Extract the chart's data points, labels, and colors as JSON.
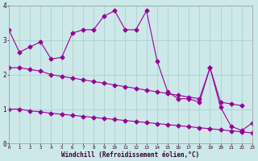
{
  "xlabel": "Windchill (Refroidissement éolien,°C)",
  "bg_color": "#cce8e8",
  "line_color": "#990099",
  "grid_color": "#aacccc",
  "tick_color": "#330033",
  "ylim": [
    0,
    4
  ],
  "xlim": [
    0,
    23
  ],
  "line1_x": [
    0,
    1,
    2,
    3,
    4,
    5,
    6,
    7,
    8,
    9,
    10,
    11,
    12,
    13,
    14,
    15,
    16,
    17,
    18,
    19,
    20,
    21,
    22,
    23
  ],
  "line1_y": [
    3.3,
    2.65,
    2.8,
    2.95,
    2.45,
    2.5,
    3.2,
    3.3,
    3.3,
    3.7,
    3.85,
    3.3,
    3.3,
    3.85,
    2.4,
    1.5,
    1.3,
    1.3,
    1.2,
    2.2,
    1.05,
    0.5,
    0.38,
    0.6
  ],
  "line2_x": [
    0,
    1,
    2,
    3,
    4,
    5,
    6,
    7,
    8,
    9,
    10,
    11,
    12,
    13,
    14,
    15,
    16,
    17,
    18,
    19,
    20,
    21,
    22
  ],
  "line2_y": [
    2.2,
    2.2,
    2.15,
    2.1,
    2.0,
    1.95,
    1.9,
    1.85,
    1.8,
    1.75,
    1.7,
    1.65,
    1.6,
    1.55,
    1.5,
    1.45,
    1.4,
    1.35,
    1.3,
    2.2,
    1.2,
    1.15,
    1.1
  ],
  "line3_x": [
    0,
    1,
    2,
    3,
    4,
    5,
    6,
    7,
    8,
    9,
    10,
    11,
    12,
    13,
    14,
    15,
    16,
    17,
    18,
    19,
    20,
    21,
    22,
    23
  ],
  "line3_y": [
    1.0,
    1.0,
    0.95,
    0.92,
    0.88,
    0.85,
    0.82,
    0.79,
    0.76,
    0.73,
    0.7,
    0.67,
    0.64,
    0.61,
    0.58,
    0.55,
    0.52,
    0.49,
    0.46,
    0.43,
    0.4,
    0.37,
    0.34,
    0.31
  ]
}
